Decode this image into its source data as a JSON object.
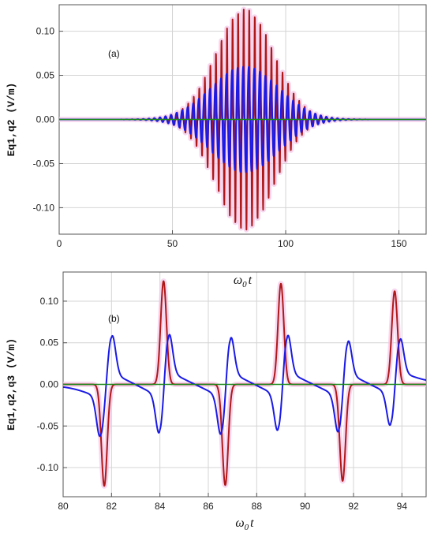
{
  "chart_data": [
    {
      "type": "line",
      "panel_label": "(a)",
      "xlabel_main": "ω",
      "xlabel_sub": "0",
      "xlabel_tail": "t",
      "ylabel": "Eq1,q2 (V/m)",
      "xlim": [
        0,
        162
      ],
      "ylim": [
        -0.13,
        0.13
      ],
      "x_ticks": [
        0,
        50,
        100,
        150
      ],
      "y_ticks": [
        -0.1,
        -0.05,
        0.0,
        0.05,
        0.1
      ],
      "x_tick_labels": [
        "0",
        "50",
        "100",
        "150"
      ],
      "y_tick_labels": [
        "-0.10",
        "-0.05",
        "0.00",
        "0.05",
        "0.10"
      ],
      "grid": true,
      "series": [
        {
          "color": "#b01818",
          "envelope": {
            "center": 82,
            "width": 18,
            "amplitude": 0.125
          },
          "period": 2.45
        },
        {
          "color": "#1a1ae6",
          "envelope": {
            "center": 82,
            "width": 21,
            "amplitude": 0.06
          },
          "period": 2.45
        },
        {
          "color": "#1a8a1a",
          "values_constant": 0.0
        }
      ]
    },
    {
      "type": "line",
      "panel_label": "(b)",
      "xlabel_main": "ω",
      "xlabel_sub": "0",
      "xlabel_tail": "t",
      "ylabel": "Eq1,q2,q3 (V/m)",
      "xlim": [
        80,
        95
      ],
      "ylim": [
        -0.135,
        0.135
      ],
      "x_ticks": [
        80,
        82,
        84,
        86,
        88,
        90,
        92,
        94
      ],
      "y_ticks": [
        -0.1,
        -0.05,
        0.0,
        0.05,
        0.1
      ],
      "x_tick_labels": [
        "80",
        "82",
        "84",
        "86",
        "88",
        "90",
        "92",
        "94"
      ],
      "y_tick_labels": [
        "-0.10",
        "-0.05",
        "0.00",
        "0.05",
        "0.10"
      ],
      "grid": true,
      "series": [
        {
          "color": "#b01818",
          "peaks": [
            {
              "x": 81.7,
              "y": -0.122
            },
            {
              "x": 84.15,
              "y": 0.124
            },
            {
              "x": 86.7,
              "y": -0.121
            },
            {
              "x": 89.0,
              "y": 0.121
            },
            {
              "x": 91.55,
              "y": -0.116
            },
            {
              "x": 93.7,
              "y": 0.112
            }
          ]
        },
        {
          "color": "#1a1ae6",
          "peaks": [
            {
              "x": 81.55,
              "y": -0.06
            },
            {
              "x": 82.0,
              "y": 0.059
            },
            {
              "x": 84.0,
              "y": -0.06
            },
            {
              "x": 84.35,
              "y": 0.061
            },
            {
              "x": 86.55,
              "y": -0.061
            },
            {
              "x": 86.9,
              "y": 0.058
            },
            {
              "x": 88.9,
              "y": -0.057
            },
            {
              "x": 89.25,
              "y": 0.06
            },
            {
              "x": 91.4,
              "y": -0.058
            },
            {
              "x": 91.75,
              "y": 0.054
            },
            {
              "x": 93.55,
              "y": -0.052
            },
            {
              "x": 93.9,
              "y": 0.054
            }
          ]
        },
        {
          "color": "#1a8a1a",
          "values_constant": 0.0
        }
      ]
    }
  ]
}
